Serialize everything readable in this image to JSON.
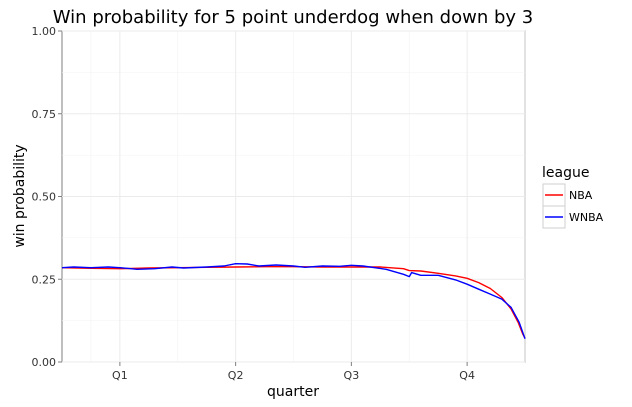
{
  "chart_data": {
    "type": "line",
    "title": "Win probability for 5 point underdog when down by 3",
    "xlabel": "quarter",
    "ylabel": "win probability",
    "xlim": [
      0.5,
      4.5
    ],
    "ylim": [
      0,
      1
    ],
    "x_tick_values": [
      1,
      2,
      3,
      4
    ],
    "x_tick_labels": [
      "Q1",
      "Q2",
      "Q3",
      "Q4"
    ],
    "y_tick_values": [
      0,
      0.25,
      0.5,
      0.75,
      1
    ],
    "y_tick_labels": [
      "0.00",
      "0.25",
      "0.50",
      "0.75",
      "1.00"
    ],
    "grid": true,
    "legend": {
      "title": "league",
      "position": "right"
    },
    "series": [
      {
        "name": "NBA",
        "color": "#ff0000",
        "points": [
          [
            0.5,
            0.285
          ],
          [
            0.75,
            0.283
          ],
          [
            1.0,
            0.282
          ],
          [
            1.25,
            0.284
          ],
          [
            1.5,
            0.285
          ],
          [
            1.75,
            0.286
          ],
          [
            2.0,
            0.287
          ],
          [
            2.25,
            0.288
          ],
          [
            2.5,
            0.288
          ],
          [
            2.75,
            0.287
          ],
          [
            3.0,
            0.287
          ],
          [
            3.25,
            0.287
          ],
          [
            3.45,
            0.282
          ],
          [
            3.5,
            0.276
          ],
          [
            3.6,
            0.275
          ],
          [
            3.75,
            0.268
          ],
          [
            3.9,
            0.26
          ],
          [
            4.0,
            0.253
          ],
          [
            4.1,
            0.24
          ],
          [
            4.2,
            0.222
          ],
          [
            4.3,
            0.195
          ],
          [
            4.38,
            0.16
          ],
          [
            4.44,
            0.12
          ],
          [
            4.48,
            0.085
          ],
          [
            4.5,
            0.072
          ]
        ]
      },
      {
        "name": "WNBA",
        "color": "#0000ff",
        "points": [
          [
            0.5,
            0.285
          ],
          [
            0.6,
            0.287
          ],
          [
            0.75,
            0.285
          ],
          [
            0.9,
            0.287
          ],
          [
            1.0,
            0.285
          ],
          [
            1.15,
            0.28
          ],
          [
            1.3,
            0.282
          ],
          [
            1.45,
            0.287
          ],
          [
            1.55,
            0.284
          ],
          [
            1.75,
            0.287
          ],
          [
            1.9,
            0.29
          ],
          [
            2.0,
            0.297
          ],
          [
            2.1,
            0.296
          ],
          [
            2.2,
            0.29
          ],
          [
            2.35,
            0.293
          ],
          [
            2.5,
            0.29
          ],
          [
            2.6,
            0.286
          ],
          [
            2.75,
            0.29
          ],
          [
            2.9,
            0.289
          ],
          [
            3.0,
            0.292
          ],
          [
            3.1,
            0.29
          ],
          [
            3.3,
            0.28
          ],
          [
            3.45,
            0.265
          ],
          [
            3.5,
            0.258
          ],
          [
            3.52,
            0.27
          ],
          [
            3.6,
            0.262
          ],
          [
            3.75,
            0.262
          ],
          [
            3.9,
            0.248
          ],
          [
            4.0,
            0.235
          ],
          [
            4.1,
            0.22
          ],
          [
            4.2,
            0.205
          ],
          [
            4.3,
            0.19
          ],
          [
            4.38,
            0.165
          ],
          [
            4.45,
            0.12
          ],
          [
            4.5,
            0.07
          ]
        ]
      }
    ]
  }
}
